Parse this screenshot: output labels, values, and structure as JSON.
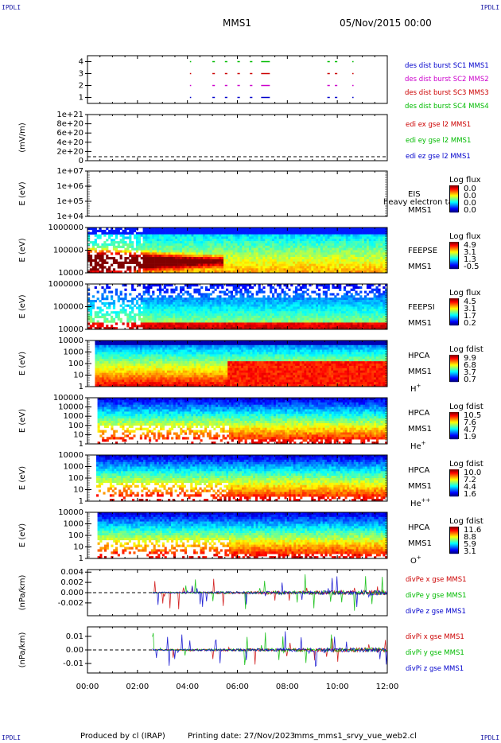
{
  "corner_label": "IPDLI",
  "header": {
    "spacecraft": "MMS1",
    "date": "05/Nov/2015 00:00"
  },
  "footer": {
    "produced_by": "Produced by cl (IRAP)",
    "printing_date": "Printing date: 27/Nov/2023",
    "filename": "mms_mms1_srvy_vue_web2.cl"
  },
  "time_axis": {
    "start_hours": 0,
    "end_hours": 12,
    "ticks": [
      "00:00",
      "02:00",
      "04:00",
      "06:00",
      "08:00",
      "10:00",
      "12:00"
    ]
  },
  "chart_data": [
    {
      "type": "scatter",
      "id": "burst",
      "ylabel": "",
      "ylim": [
        0.5,
        4.5
      ],
      "yticks": [
        "1",
        "2",
        "3",
        "4"
      ],
      "series": [
        {
          "name": "des dist burst SC1 MMS1",
          "y": 1,
          "color": "#0000cc"
        },
        {
          "name": "des dist burst SC2 MMS2",
          "y": 2,
          "color": "#cc00cc"
        },
        {
          "name": "des dist burst SC3 MMS3",
          "y": 3,
          "color": "#cc0000"
        },
        {
          "name": "des dist burst SC4 MMS4",
          "y": 4,
          "color": "#00bb00"
        }
      ],
      "intervals_hours": [
        [
          4.1,
          4.15
        ],
        [
          5.0,
          5.1
        ],
        [
          5.5,
          5.6
        ],
        [
          6.0,
          6.1
        ],
        [
          6.5,
          6.6
        ],
        [
          6.95,
          7.3
        ],
        [
          9.6,
          9.7
        ],
        [
          9.9,
          10.0
        ],
        [
          10.6,
          10.65
        ]
      ]
    },
    {
      "type": "line",
      "id": "edi",
      "ylabel": "(mV/m)",
      "ylim": [
        0,
        1e+21
      ],
      "yticks": [
        "1e+21",
        "8e+20",
        "6e+20",
        "4e+20",
        "2e+20",
        "0"
      ],
      "series": [
        {
          "name": "edi ex gse l2 MMS1",
          "color": "#cc0000"
        },
        {
          "name": "edi ey gse l2 MMS1",
          "color": "#00bb00"
        },
        {
          "name": "edi ez gse l2 MMS1",
          "color": "#0000cc"
        }
      ]
    },
    {
      "type": "heatmap",
      "id": "eis",
      "ylabel": "E (eV)",
      "yticks": [
        "1e+07",
        "1e+06",
        "1e+05",
        "1e+04"
      ],
      "instrument": [
        "EIS",
        "MMS1"
      ],
      "overlay_text": "heavy electron ta",
      "colorbar": {
        "title": "Log flux",
        "ticks": [
          "0.0",
          "0.0",
          "0.0",
          "0.0"
        ]
      },
      "empty": true
    },
    {
      "type": "heatmap",
      "id": "feepse",
      "ylabel": "E (eV)",
      "yticks": [
        "1000000",
        "100000",
        "10000"
      ],
      "instrument": [
        "FEEPSE",
        "MMS1"
      ],
      "colorbar": {
        "title": "Log flux",
        "ticks": [
          "4.9",
          "3.1",
          "1.3",
          "-0.5"
        ]
      },
      "data_start_hours": 0.0
    },
    {
      "type": "heatmap",
      "id": "feepsi",
      "ylabel": "E (eV)",
      "yticks": [
        "1000000",
        "100000",
        "10000"
      ],
      "instrument": [
        "FEEPSI",
        "MMS1"
      ],
      "colorbar": {
        "title": "Log flux",
        "ticks": [
          "4.5",
          "3.1",
          "1.7",
          "0.2"
        ]
      },
      "data_start_hours": 0.0
    },
    {
      "type": "heatmap",
      "id": "hpca_h",
      "ylabel": "E (eV)",
      "yticks": [
        "10000",
        "1000",
        "100",
        "10",
        "1"
      ],
      "instrument": [
        "HPCA",
        "MMS1",
        "H",
        "+"
      ],
      "colorbar": {
        "title": "Log fdist",
        "ticks": [
          "9.9",
          "6.8",
          "3.7",
          "0.7"
        ]
      },
      "data_start_hours": 0.3
    },
    {
      "type": "heatmap",
      "id": "hpca_he",
      "ylabel": "E (eV)",
      "yticks": [
        "100000",
        "10000",
        "1000",
        "100",
        "10",
        "1"
      ],
      "instrument": [
        "HPCA",
        "MMS1",
        "He",
        "+"
      ],
      "colorbar": {
        "title": "Log fdist",
        "ticks": [
          "10.5",
          "7.6",
          "4.7",
          "1.9"
        ]
      },
      "data_start_hours": 0.4
    },
    {
      "type": "heatmap",
      "id": "hpca_hepp",
      "ylabel": "E (eV)",
      "yticks": [
        "10000",
        "1000",
        "100",
        "10",
        "1"
      ],
      "instrument": [
        "HPCA",
        "MMS1",
        "He",
        "++"
      ],
      "colorbar": {
        "title": "Log fdist",
        "ticks": [
          "10.0",
          "7.2",
          "4.4",
          "1.6"
        ]
      },
      "data_start_hours": 0.35
    },
    {
      "type": "heatmap",
      "id": "hpca_o",
      "ylabel": "E (eV)",
      "yticks": [
        "10000",
        "1000",
        "100",
        "10",
        "1"
      ],
      "instrument": [
        "HPCA",
        "MMS1",
        "O",
        "+"
      ],
      "colorbar": {
        "title": "Log fdist",
        "ticks": [
          "11.6",
          "8.8",
          "5.9",
          "3.1"
        ]
      },
      "data_start_hours": 0.4
    },
    {
      "type": "line",
      "id": "divpe",
      "ylabel": "(nPa/km)",
      "ylim": [
        -0.0045,
        0.0045
      ],
      "yticks": [
        "0.004",
        "0.002",
        "0.000",
        "-0.002"
      ],
      "ytick_values": [
        0.004,
        0.002,
        0.0,
        -0.002
      ],
      "data_start_hours": 2.6,
      "series": [
        {
          "name": "divPe x gse MMS1",
          "color": "#cc0000"
        },
        {
          "name": "divPe y gse MMS1",
          "color": "#00bb00"
        },
        {
          "name": "divPe z gse MMS1",
          "color": "#0000cc"
        }
      ]
    },
    {
      "type": "line",
      "id": "divpi",
      "ylabel": "(nPa/km)",
      "ylim": [
        -0.017,
        0.017
      ],
      "yticks": [
        "0.01",
        "0.00",
        "-0.01"
      ],
      "ytick_values": [
        0.01,
        0.0,
        -0.01
      ],
      "data_start_hours": 2.6,
      "series": [
        {
          "name": "divPi x gse MMS1",
          "color": "#cc0000"
        },
        {
          "name": "divPi y gse MMS1",
          "color": "#00bb00"
        },
        {
          "name": "divPi z gse MMS1",
          "color": "#0000cc"
        }
      ]
    }
  ]
}
